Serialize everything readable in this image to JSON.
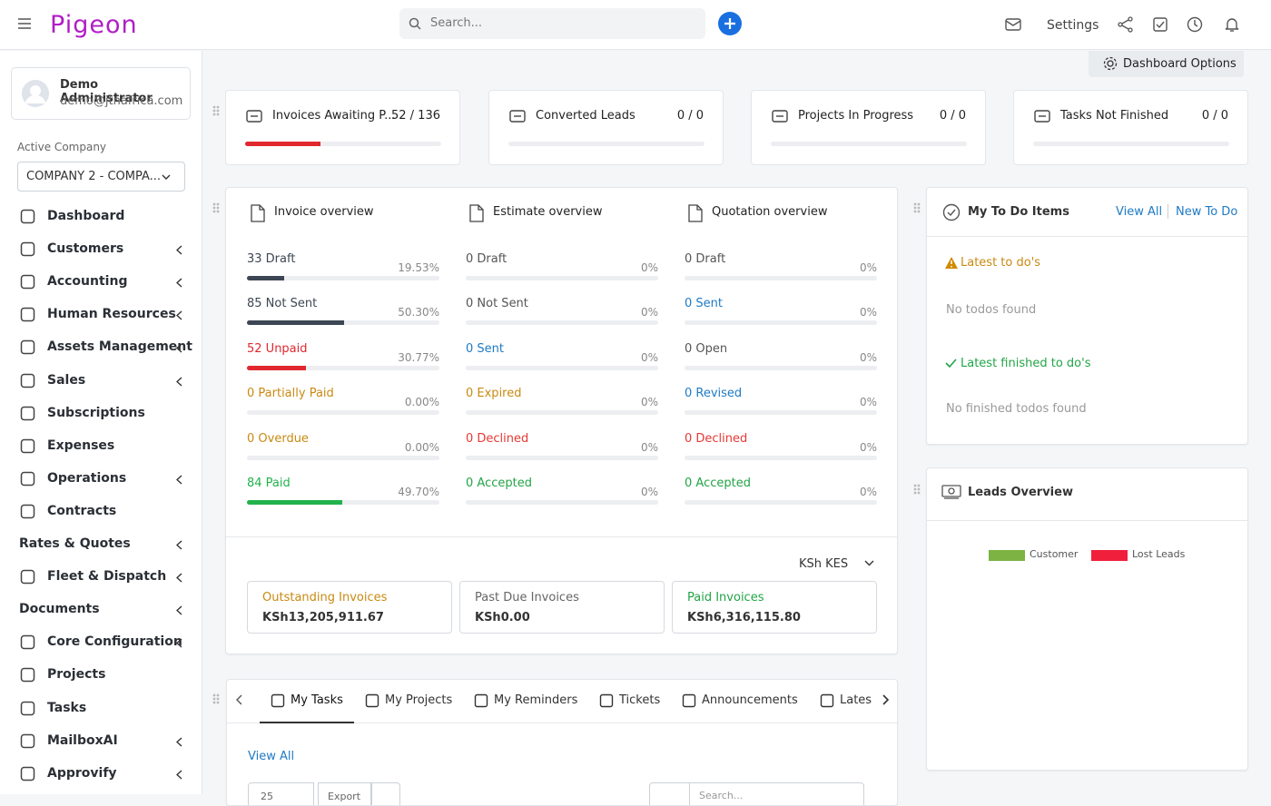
{
  "header": {
    "brand": "Pigeon",
    "search_placeholder": "Search...",
    "settings": "Settings"
  },
  "sidebar": {
    "user_name": "Demo Administrator",
    "user_email": "demo@jtnafrica.com",
    "company_label": "Active Company",
    "company": "COMPANY 2 - COMPA...",
    "nav": [
      {
        "label": "Dashboard",
        "icon": true,
        "sub": false
      },
      {
        "label": "Customers",
        "icon": true,
        "sub": true
      },
      {
        "label": "Accounting",
        "icon": true,
        "sub": true
      },
      {
        "label": "Human Resources",
        "icon": true,
        "sub": true
      },
      {
        "label": "Assets Management",
        "icon": true,
        "sub": true
      },
      {
        "label": "Sales",
        "icon": true,
        "sub": true
      },
      {
        "label": "Subscriptions",
        "icon": true,
        "sub": false
      },
      {
        "label": "Expenses",
        "icon": true,
        "sub": false
      },
      {
        "label": "Operations",
        "icon": true,
        "sub": true
      },
      {
        "label": "Contracts",
        "icon": true,
        "sub": false
      },
      {
        "label": "Rates & Quotes",
        "icon": false,
        "sub": true
      },
      {
        "label": "Fleet & Dispatch",
        "icon": true,
        "sub": true
      },
      {
        "label": "Documents",
        "icon": false,
        "sub": true
      },
      {
        "label": "Core Configuration",
        "icon": true,
        "sub": true
      },
      {
        "label": "Projects",
        "icon": true,
        "sub": false
      },
      {
        "label": "Tasks",
        "icon": true,
        "sub": false
      },
      {
        "label": "MailboxAI",
        "icon": true,
        "sub": true
      },
      {
        "label": "Approvify",
        "icon": true,
        "sub": true
      }
    ]
  },
  "dashboard_options": "Dashboard Options",
  "stats": [
    {
      "label": "Invoices Awaiting P...",
      "value": "52 / 136"
    },
    {
      "label": "Converted Leads",
      "value": "0 / 0"
    },
    {
      "label": "Projects In Progress",
      "value": "0 / 0"
    },
    {
      "label": "Tasks Not Finished",
      "value": "0 / 0"
    }
  ],
  "overview": {
    "columns": [
      {
        "title": "Invoice overview",
        "rows": [
          {
            "label": "33 Draft",
            "percent": "19.53%",
            "color": "#3d4654"
          },
          {
            "label": "85 Not Sent",
            "percent": "50.30%",
            "color": "#3d4654"
          },
          {
            "label": "52 Unpaid",
            "percent": "30.77%",
            "color": "#e0282e"
          },
          {
            "label": "0 Partially Paid",
            "percent": "0.00%",
            "color": "#c98a12"
          },
          {
            "label": "0 Overdue",
            "percent": "0.00%",
            "color": "#c98a12"
          },
          {
            "label": "84 Paid",
            "percent": "49.70%",
            "color": "#22b24c"
          }
        ]
      },
      {
        "title": "Estimate overview",
        "rows": [
          {
            "label": "0 Draft",
            "percent": "0%",
            "color": "#555"
          },
          {
            "label": "0 Not Sent",
            "percent": "0%",
            "color": "#555"
          },
          {
            "label": "0 Sent",
            "percent": "0%",
            "color": "#1f7ac4"
          },
          {
            "label": "0 Expired",
            "percent": "0%",
            "color": "#c98a12"
          },
          {
            "label": "0 Declined",
            "percent": "0%",
            "color": "#e53935"
          },
          {
            "label": "0 Accepted",
            "percent": "0%",
            "color": "#22a447"
          }
        ]
      },
      {
        "title": "Quotation overview",
        "rows": [
          {
            "label": "0 Draft",
            "percent": "0%",
            "color": "#555"
          },
          {
            "label": "0 Sent",
            "percent": "0%",
            "color": "#1f7ac4"
          },
          {
            "label": "0 Open",
            "percent": "0%",
            "color": "#555"
          },
          {
            "label": "0 Revised",
            "percent": "0%",
            "color": "#1f7ac4"
          },
          {
            "label": "0 Declined",
            "percent": "0%",
            "color": "#e53935"
          },
          {
            "label": "0 Accepted",
            "percent": "0%",
            "color": "#22a447"
          }
        ]
      }
    ],
    "currency": "KSh KES",
    "totals": [
      {
        "label": "Outstanding Invoices",
        "amount": "KSh13,205,911.67",
        "color": "#c98a12"
      },
      {
        "label": "Past Due Invoices",
        "amount": "KSh0.00",
        "color": "#666"
      },
      {
        "label": "Paid Invoices",
        "amount": "KSh6,316,115.80",
        "color": "#22a447"
      }
    ]
  },
  "todo": {
    "title": "My To Do Items",
    "view_all": "View All",
    "new": "New To Do",
    "latest": "Latest to do's",
    "none": "No todos found",
    "finished": "Latest finished to do's",
    "none_finished": "No finished todos found"
  },
  "leads": {
    "title": "Leads Overview",
    "legend": [
      {
        "name": "Customer",
        "color": "#7cb342"
      },
      {
        "name": "Lost Leads",
        "color": "#f0203c"
      }
    ]
  },
  "tabs": {
    "items": [
      "My Tasks",
      "My Projects",
      "My Reminders",
      "Tickets",
      "Announcements",
      "Lates"
    ],
    "view_all": "View All",
    "page_size": "25",
    "export": "Export",
    "search": "Search..."
  }
}
